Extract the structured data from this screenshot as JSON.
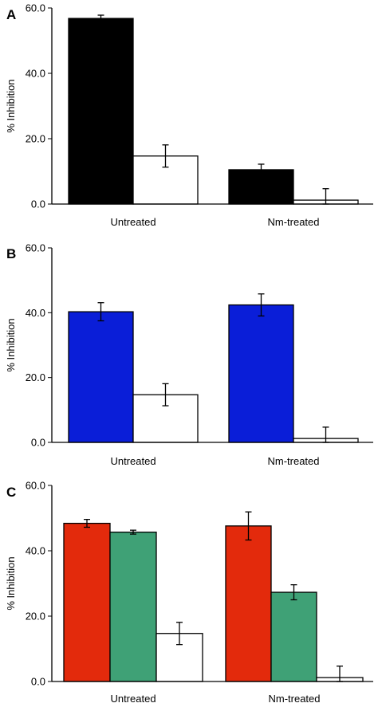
{
  "chart_data": [
    {
      "type": "bar",
      "panel_label": "A",
      "ylabel": "% Inhibition",
      "ylim": [
        0,
        60
      ],
      "yticks": [
        "0.0",
        "20.0",
        "40.0",
        "60.0"
      ],
      "categories": [
        "Untreated",
        "Nm-treated"
      ],
      "series": [
        {
          "color": "#000000",
          "values": [
            56.8,
            10.5
          ],
          "errors": [
            1.0,
            1.7
          ]
        },
        {
          "color": "#ffffff",
          "values": [
            14.7,
            1.2
          ],
          "errors": [
            3.4,
            3.5
          ]
        }
      ]
    },
    {
      "type": "bar",
      "panel_label": "B",
      "ylabel": "% Inhibition",
      "ylim": [
        0,
        60
      ],
      "yticks": [
        "0.0",
        "20.0",
        "40.0",
        "60.0"
      ],
      "categories": [
        "Untreated",
        "Nm-treated"
      ],
      "series": [
        {
          "color": "#0a1ed8",
          "values": [
            40.3,
            42.4
          ],
          "errors": [
            2.8,
            3.4
          ]
        },
        {
          "color": "#ffffff",
          "values": [
            14.7,
            1.2
          ],
          "errors": [
            3.4,
            3.5
          ]
        }
      ]
    },
    {
      "type": "bar",
      "panel_label": "C",
      "ylabel": "% Inhibition",
      "ylim": [
        0,
        60
      ],
      "yticks": [
        "0.0",
        "20.0",
        "40.0",
        "60.0"
      ],
      "categories": [
        "Untreated",
        "Nm-treated"
      ],
      "series": [
        {
          "color": "#e32a0c",
          "values": [
            48.4,
            47.6
          ],
          "errors": [
            1.2,
            4.3
          ]
        },
        {
          "color": "#3fa176",
          "values": [
            45.7,
            27.3
          ],
          "errors": [
            0.6,
            2.3
          ]
        },
        {
          "color": "#ffffff",
          "values": [
            14.7,
            1.2
          ],
          "errors": [
            3.4,
            3.5
          ]
        }
      ]
    }
  ]
}
